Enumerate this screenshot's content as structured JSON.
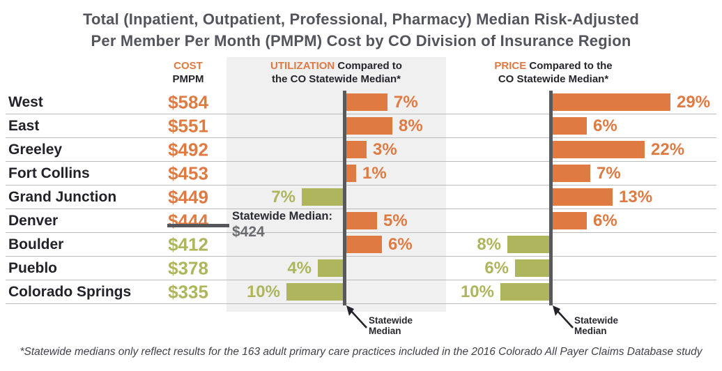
{
  "title": {
    "line1": "Total (Inpatient, Outpatient, Professional, Pharmacy) Median Risk-Adjusted",
    "line2": "Per Member Per Month (PMPM) Cost by CO Division of Insurance Region"
  },
  "columns": {
    "cost": {
      "label_top": "COST",
      "label_bottom": "PMPM"
    },
    "utilization": {
      "highlight": "UTILIZATION",
      "rest1": " Compared to",
      "rest2": "the CO Statewide Median*"
    },
    "price": {
      "highlight": "PRICE",
      "rest1": " Compared to the",
      "rest2": "CO Statewide Median*"
    }
  },
  "median_annotation": {
    "label": "Statewide Median:",
    "value": "$424"
  },
  "axis_callout": {
    "line1": "Statewide",
    "line2": "Median"
  },
  "footnote": "*Statewide medians only reflect results for the 163 adult primary care practices included in the 2016 Colorado All Payer Claims Database study",
  "colors": {
    "orange": "#de7a42",
    "green": "#aeb55c",
    "median_line": "#58595c",
    "panel": "#f0f0f1",
    "separator": "#bcbcbc",
    "title_gray": "#53545c",
    "text_dark": "#232129",
    "value_gray": "#6b6c70"
  },
  "chart_data": {
    "type": "bar",
    "orientation": "horizontal",
    "title": "Total (Inpatient, Outpatient, Professional, Pharmacy) Median Risk-Adjusted Per Member Per Month (PMPM) Cost by CO Division of Insurance Region",
    "categories": [
      "West",
      "East",
      "Greeley",
      "Fort Collins",
      "Grand Junction",
      "Denver",
      "Boulder",
      "Pueblo",
      "Colorado Springs"
    ],
    "series": [
      {
        "name": "Cost PMPM",
        "unit": "$",
        "values": [
          584,
          551,
          492,
          453,
          449,
          444,
          412,
          378,
          335
        ]
      },
      {
        "name": "Utilization vs CO statewide median",
        "unit": "%",
        "values": [
          7,
          8,
          3,
          1,
          -7,
          5,
          6,
          -4,
          -10
        ]
      },
      {
        "name": "Price vs CO statewide median",
        "unit": "%",
        "values": [
          29,
          6,
          22,
          7,
          13,
          6,
          -8,
          -6,
          -10
        ]
      }
    ],
    "statewide_median_cost": 424,
    "positive_color": "#de7a42",
    "negative_color": "#aeb55c",
    "legend_position": "none",
    "grid": "row-separators"
  }
}
